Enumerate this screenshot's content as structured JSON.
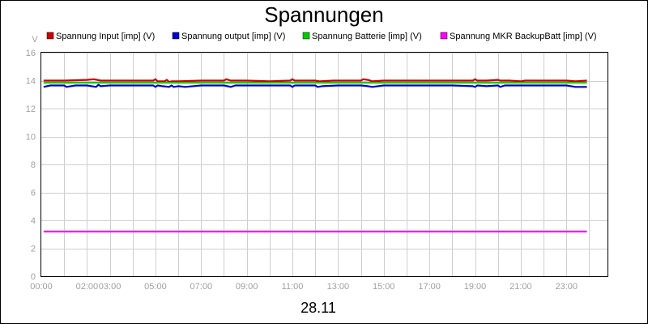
{
  "chart_data": {
    "type": "line",
    "title": "Spannungen",
    "xlabel": "28.11",
    "ylabel": "V",
    "ylim": [
      0,
      16
    ],
    "yticks": [
      "0",
      "2",
      "4",
      "6",
      "8",
      "10",
      "12",
      "14",
      "16"
    ],
    "xlim": [
      0,
      24
    ],
    "xticks": [
      {
        "label": "00:00",
        "value": 0
      },
      {
        "label": "02:00",
        "value": 2
      },
      {
        "label": "03:00",
        "value": 3
      },
      {
        "label": "05:00",
        "value": 5
      },
      {
        "label": "07:00",
        "value": 7
      },
      {
        "label": "09:00",
        "value": 9
      },
      {
        "label": "11:00",
        "value": 11
      },
      {
        "label": "13:00",
        "value": 13
      },
      {
        "label": "15:00",
        "value": 15
      },
      {
        "label": "17:00",
        "value": 17
      },
      {
        "label": "19:00",
        "value": 19
      },
      {
        "label": "21:00",
        "value": 21
      },
      {
        "label": "23:00",
        "value": 23
      }
    ],
    "grid": true,
    "legend_position": "top",
    "series": [
      {
        "name": "Spannung Input [imp] (V)",
        "color": "#cc0000",
        "x": [
          0.1,
          1.0,
          2.0,
          2.3,
          2.6,
          3.0,
          4.0,
          4.9,
          5.0,
          5.1,
          5.4,
          5.5,
          5.6,
          5.7,
          6.0,
          7.0,
          8.0,
          8.1,
          8.3,
          9.0,
          10.0,
          10.9,
          11.0,
          11.1,
          12.0,
          12.2,
          12.8,
          13.0,
          13.3,
          14.0,
          14.1,
          14.3,
          14.5,
          15.0,
          16.0,
          17.0,
          18.0,
          18.9,
          19.0,
          19.1,
          19.5,
          20.0,
          20.1,
          20.5,
          21.0,
          21.2,
          22.0,
          23.0,
          23.4,
          23.9
        ],
        "y": [
          14.0,
          14.0,
          14.05,
          14.1,
          14.0,
          14.0,
          14.0,
          14.0,
          14.1,
          13.95,
          13.95,
          14.05,
          13.9,
          13.95,
          13.95,
          14.0,
          14.0,
          14.1,
          14.0,
          14.0,
          13.95,
          14.0,
          14.1,
          14.0,
          14.0,
          13.95,
          14.0,
          14.0,
          14.0,
          14.0,
          14.1,
          14.05,
          13.95,
          14.0,
          14.0,
          14.0,
          14.0,
          14.0,
          14.1,
          14.0,
          14.0,
          14.05,
          14.0,
          14.0,
          13.95,
          14.0,
          14.0,
          14.0,
          13.95,
          14.0
        ]
      },
      {
        "name": "Spannung output [imp] (V)",
        "color": "#0000cc",
        "x": [
          0.1,
          0.4,
          1.0,
          1.1,
          1.5,
          2.0,
          2.4,
          2.5,
          2.6,
          3.0,
          4.0,
          4.9,
          5.0,
          5.1,
          5.3,
          5.6,
          5.7,
          5.8,
          6.0,
          6.3,
          7.0,
          8.0,
          8.3,
          8.5,
          9.0,
          10.0,
          10.9,
          11.0,
          11.1,
          12.0,
          12.1,
          12.3,
          13.0,
          14.0,
          14.3,
          14.5,
          15.0,
          16.0,
          17.0,
          18.0,
          18.9,
          19.0,
          19.1,
          19.5,
          20.0,
          20.1,
          20.3,
          21.0,
          22.0,
          23.0,
          23.4,
          23.9
        ],
        "y": [
          13.55,
          13.65,
          13.65,
          13.55,
          13.65,
          13.65,
          13.55,
          13.7,
          13.6,
          13.65,
          13.65,
          13.65,
          13.55,
          13.65,
          13.6,
          13.55,
          13.65,
          13.55,
          13.6,
          13.55,
          13.65,
          13.65,
          13.55,
          13.65,
          13.65,
          13.65,
          13.65,
          13.55,
          13.65,
          13.65,
          13.55,
          13.6,
          13.65,
          13.65,
          13.6,
          13.55,
          13.65,
          13.65,
          13.65,
          13.65,
          13.6,
          13.55,
          13.65,
          13.6,
          13.65,
          13.55,
          13.65,
          13.65,
          13.65,
          13.65,
          13.55,
          13.55
        ]
      },
      {
        "name": "Spannung Batterie [imp] (V)",
        "color": "#00cc00",
        "x": [
          0.1,
          23.9
        ],
        "y": [
          13.85,
          13.85
        ]
      },
      {
        "name": "Spannung MKR BackupBatt [imp] (V)",
        "color": "#ff00ff",
        "x": [
          0.1,
          23.9
        ],
        "y": [
          3.2,
          3.2
        ]
      }
    ]
  }
}
